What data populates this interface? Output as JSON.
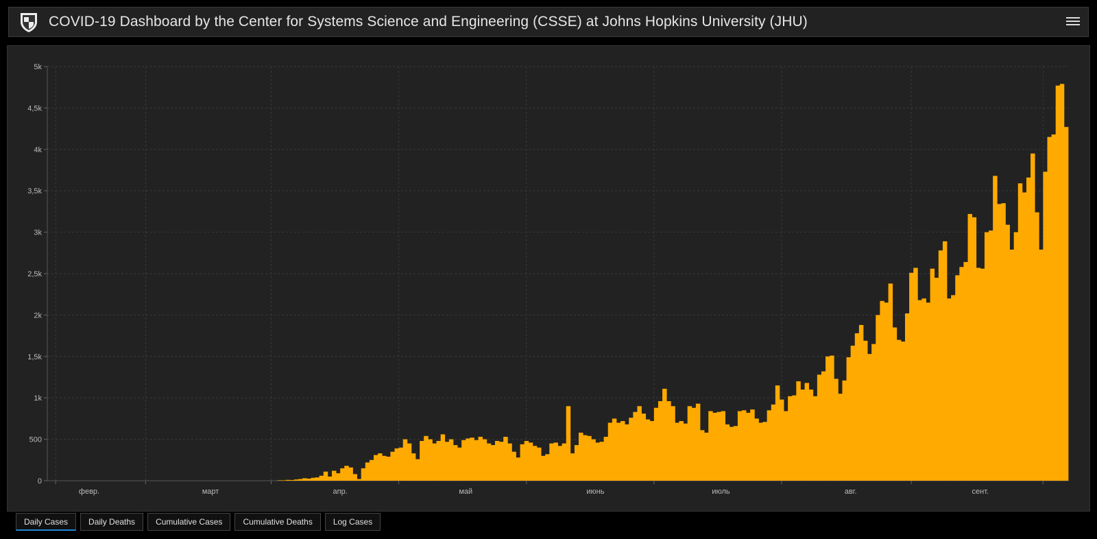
{
  "header": {
    "title": "COVID-19 Dashboard by the Center for Systems Science and Engineering (CSSE) at Johns Hopkins University (JHU)",
    "logo_icon": "jhu-shield-icon",
    "menu_icon": "hamburger-menu-icon"
  },
  "tabs": [
    {
      "label": "Daily Cases",
      "active": true
    },
    {
      "label": "Daily Deaths",
      "active": false
    },
    {
      "label": "Cumulative Cases",
      "active": false
    },
    {
      "label": "Cumulative Deaths",
      "active": false
    },
    {
      "label": "Log Cases",
      "active": false
    }
  ],
  "colors": {
    "bar": "#FFAA00",
    "background": "#222222",
    "accent": "#1F87D6"
  },
  "chart_data": {
    "type": "bar",
    "title": "",
    "xlabel": "",
    "ylabel": "",
    "x_start": "2020-01-22",
    "ylim": [
      0,
      5000
    ],
    "grid": true,
    "y_ticks": [
      "0",
      "500",
      "1k",
      "1,5k",
      "2k",
      "2,5k",
      "3k",
      "3,5k",
      "4k",
      "4,5k",
      "5k"
    ],
    "x_ticks": [
      {
        "label": "февр.",
        "day": 10
      },
      {
        "label": "март",
        "day": 39
      },
      {
        "label": "апр.",
        "day": 70
      },
      {
        "label": "май",
        "day": 100
      },
      {
        "label": "июнь",
        "day": 131
      },
      {
        "label": "июль",
        "day": 161
      },
      {
        "label": "авг.",
        "day": 192
      },
      {
        "label": "сент.",
        "day": 223
      }
    ],
    "values": [
      0,
      0,
      0,
      0,
      0,
      0,
      0,
      0,
      0,
      0,
      0,
      0,
      0,
      0,
      0,
      0,
      0,
      0,
      0,
      0,
      0,
      0,
      0,
      0,
      0,
      0,
      0,
      0,
      0,
      0,
      0,
      0,
      0,
      0,
      0,
      0,
      0,
      0,
      0,
      0,
      0,
      0,
      0,
      0,
      0,
      0,
      0,
      0,
      0,
      0,
      0,
      0,
      0,
      0,
      0,
      5,
      5,
      10,
      8,
      15,
      20,
      30,
      25,
      35,
      40,
      60,
      110,
      50,
      120,
      90,
      150,
      180,
      160,
      80,
      20,
      150,
      220,
      250,
      310,
      330,
      300,
      290,
      350,
      390,
      400,
      500,
      450,
      330,
      260,
      480,
      540,
      500,
      450,
      480,
      560,
      470,
      500,
      430,
      400,
      490,
      510,
      520,
      490,
      530,
      500,
      450,
      430,
      480,
      470,
      530,
      450,
      350,
      280,
      440,
      480,
      460,
      420,
      400,
      300,
      320,
      450,
      460,
      420,
      450,
      900,
      330,
      430,
      580,
      550,
      540,
      500,
      460,
      470,
      530,
      700,
      750,
      700,
      720,
      680,
      760,
      830,
      900,
      810,
      740,
      720,
      880,
      960,
      1110,
      960,
      900,
      700,
      720,
      690,
      900,
      880,
      930,
      610,
      580,
      840,
      820,
      830,
      840,
      680,
      650,
      660,
      840,
      850,
      820,
      860,
      750,
      700,
      710,
      850,
      920,
      1150,
      980,
      840,
      1020,
      1030,
      1200,
      1100,
      1180,
      1100,
      1020,
      1280,
      1320,
      1500,
      1510,
      1230,
      1050,
      1210,
      1490,
      1630,
      1780,
      1880,
      1690,
      1530,
      1650,
      2000,
      2170,
      2150,
      2380,
      1850,
      1700,
      1680,
      2020,
      2510,
      2570,
      2180,
      2200,
      2150,
      2560,
      2450,
      2780,
      2890,
      2200,
      2240,
      2480,
      2580,
      2640,
      3220,
      3180,
      2570,
      2560,
      3000,
      3020,
      3680,
      3340,
      3350,
      3090,
      2790,
      3000,
      3590,
      3480,
      3660,
      3950,
      3240,
      2790,
      3730,
      4150,
      4180,
      4770,
      4790,
      4270
    ]
  }
}
